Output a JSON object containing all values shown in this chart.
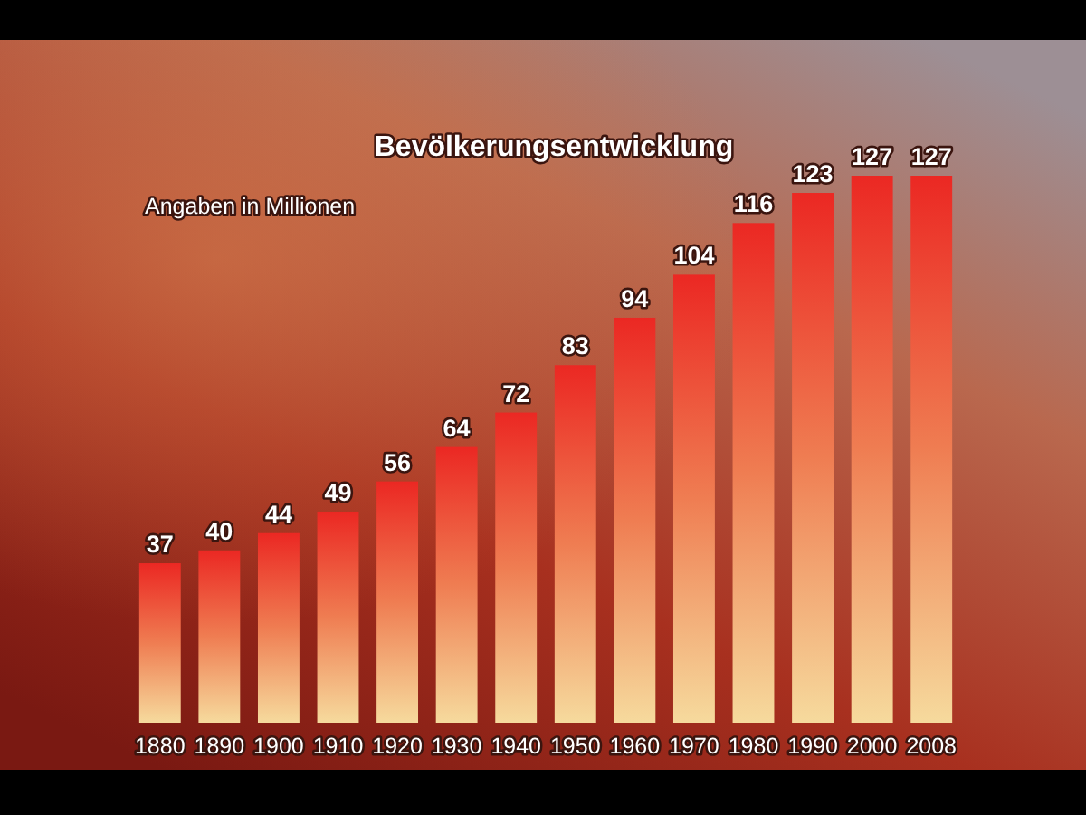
{
  "chart_data": {
    "type": "bar",
    "title": "Bevölkerungsentwicklung",
    "subtitle": "Angaben in Millionen",
    "categories": [
      "1880",
      "1890",
      "1900",
      "1910",
      "1920",
      "1930",
      "1940",
      "1950",
      "1960",
      "1970",
      "1980",
      "1990",
      "2000",
      "2008"
    ],
    "values": [
      37,
      40,
      44,
      49,
      56,
      64,
      72,
      83,
      94,
      104,
      116,
      123,
      127,
      127
    ],
    "color": "#ef7d52",
    "data_labels": true
  }
}
